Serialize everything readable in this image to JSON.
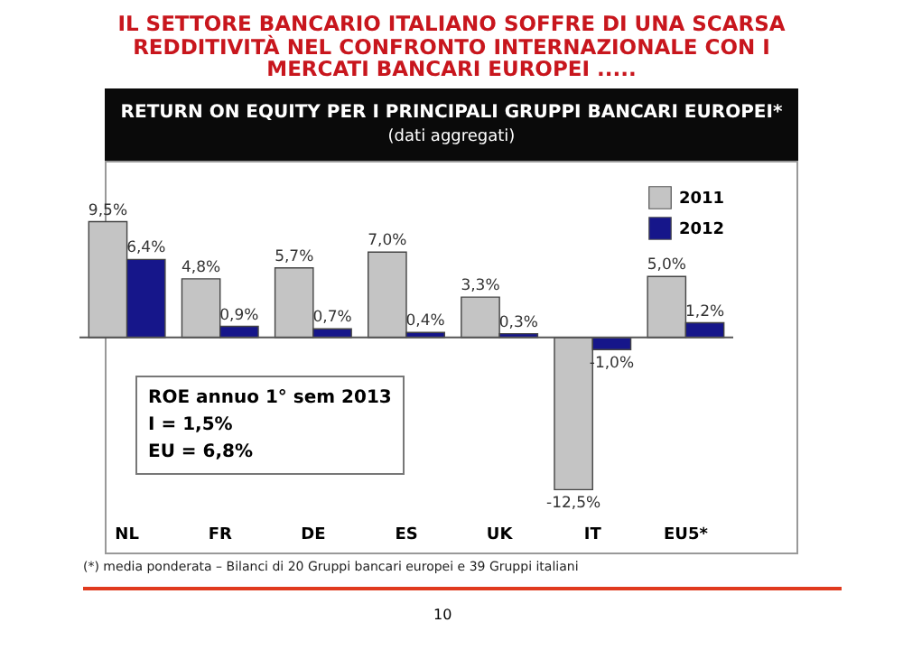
{
  "chart_data": {
    "type": "bar",
    "title": "IL SETTORE BANCARIO ITALIANO SOFFRE DI UNA SCARSA REDDITIVITÀ NEL CONFRONTO INTERNAZIONALE CON I MERCATI BANCARI EUROPEI .....",
    "subtitle": "RETURN ON EQUITY PER I PRINCIPALI GRUPPI BANCARI EUROPEI*",
    "annotations": [
      "(dati aggregati)",
      "ROE annuo 1° sem 2013",
      "I = 1,5%",
      "EU = 6,8%",
      "(*) media ponderata – Bilanci di 20 Gruppi bancari europei e 39 Gruppi italiani",
      "10"
    ],
    "categories": [
      "NL",
      "FR",
      "DE",
      "ES",
      "UK",
      "IT",
      "EU5*"
    ],
    "series": [
      {
        "name": "2011",
        "color": "#c4c4c4",
        "values": [
          9.5,
          4.8,
          5.7,
          7.0,
          3.3,
          -12.5,
          5.0
        ],
        "value_labels": [
          "9,5%",
          "4,8%",
          "5,7%",
          "7,0%",
          "3,3%",
          "-12,5%",
          "5,0%"
        ]
      },
      {
        "name": "2012",
        "color": "#16168a",
        "values": [
          6.4,
          0.9,
          0.7,
          0.4,
          0.3,
          -1.0,
          1.2
        ],
        "value_labels": [
          "6,4%",
          "0,9%",
          "0,7%",
          "0,4%",
          "0,3%",
          "-1,0%",
          "1,2%"
        ]
      }
    ],
    "legend": "top right"
  }
}
